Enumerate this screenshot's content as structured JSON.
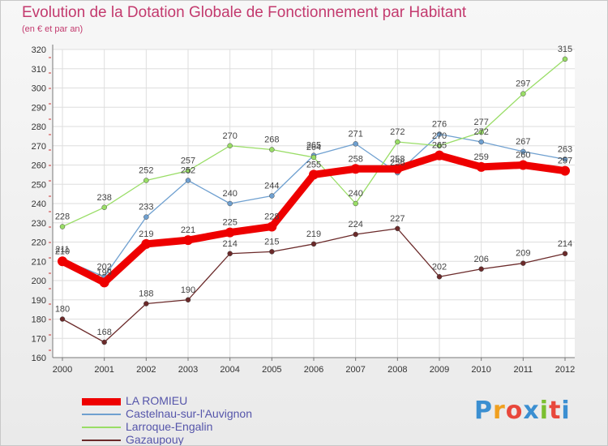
{
  "title": "Evolution de la Dotation Globale de Fonctionnement par Habitant",
  "subtitle": "(en € et par an)",
  "logo": {
    "text": "Proxiti",
    "letters": [
      "P",
      "r",
      "o",
      "x",
      "i",
      "t",
      "i"
    ]
  },
  "chart_data": {
    "type": "line",
    "title": "Evolution de la Dotation Globale de Fonctionnement par Habitant",
    "subtitle": "(en € et par an)",
    "xlabel": "",
    "ylabel": "",
    "ylim": [
      160,
      320
    ],
    "yticks": [
      160,
      170,
      180,
      190,
      200,
      210,
      220,
      230,
      240,
      250,
      260,
      270,
      280,
      290,
      300,
      310,
      320
    ],
    "categories": [
      "2000",
      "2001",
      "2002",
      "2003",
      "2004",
      "2005",
      "2006",
      "2007",
      "2008",
      "2009",
      "2010",
      "2011",
      "2012"
    ],
    "legend_position": "bottom-left",
    "series": [
      {
        "name": "LA ROMIEU",
        "color": "#ee0000",
        "emphasis": true,
        "values": [
          210,
          199,
          219,
          221,
          225,
          228,
          255,
          258,
          258,
          265,
          259,
          260,
          257
        ]
      },
      {
        "name": "Castelnau-sur-l'Auvignon",
        "color": "#6fa0d0",
        "emphasis": false,
        "values": [
          211,
          202,
          233,
          252,
          240,
          244,
          265,
          271,
          256,
          276,
          272,
          267,
          263
        ]
      },
      {
        "name": "Larroque-Engalin",
        "color": "#99dd66",
        "emphasis": false,
        "values": [
          228,
          238,
          252,
          257,
          270,
          268,
          264,
          240,
          272,
          270,
          277,
          297,
          315
        ]
      },
      {
        "name": "Gazaupouy",
        "color": "#6b2a2a",
        "emphasis": false,
        "values": [
          180,
          168,
          188,
          190,
          214,
          215,
          219,
          224,
          227,
          202,
          206,
          209,
          214
        ]
      }
    ]
  }
}
